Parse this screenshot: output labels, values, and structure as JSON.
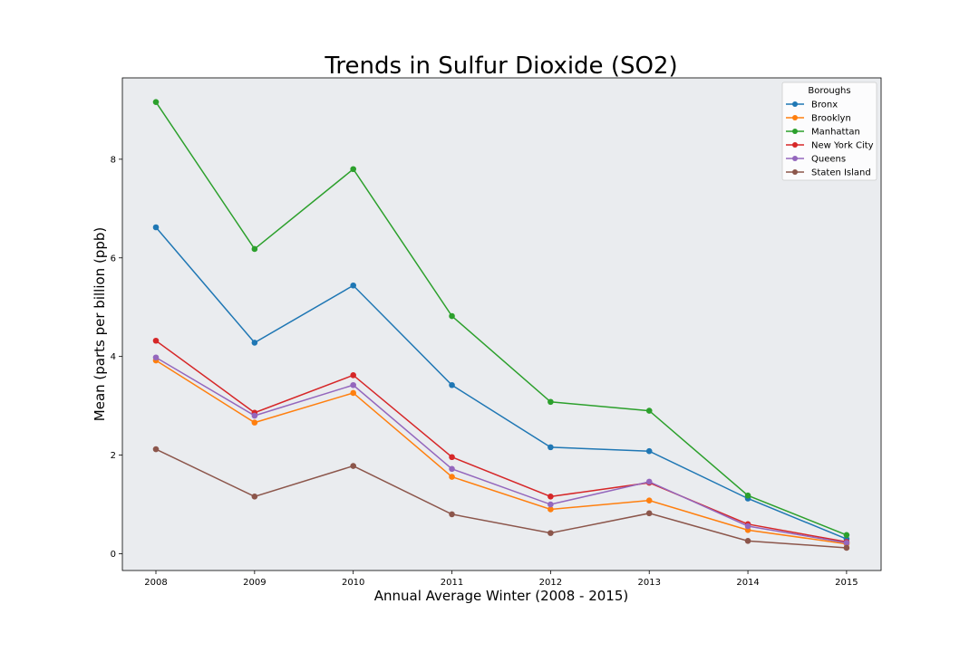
{
  "chart_data": {
    "type": "line",
    "title": "Trends in Sulfur Dioxide (SO2)",
    "xlabel": "Annual Average Winter (2008 - 2015)",
    "ylabel": "Mean (parts per billion (ppb)",
    "x": [
      "2008",
      "2009",
      "2010",
      "2011",
      "2012",
      "2013",
      "2014",
      "2015"
    ],
    "xlim": [
      2007.66,
      2015.35
    ],
    "ylim": [
      -0.34,
      9.65
    ],
    "yticks": [
      0,
      2,
      4,
      6,
      8
    ],
    "grid": false,
    "legend": {
      "title": "Boroughs",
      "placement": "top-right"
    },
    "background": "#eaecef",
    "series": [
      {
        "name": "Bronx",
        "color": "#1f77b4",
        "values": [
          6.62,
          4.28,
          5.44,
          3.42,
          2.16,
          2.08,
          1.12,
          0.3
        ]
      },
      {
        "name": "Brooklyn",
        "color": "#ff7f0e",
        "values": [
          3.92,
          2.66,
          3.26,
          1.56,
          0.9,
          1.08,
          0.48,
          0.2
        ]
      },
      {
        "name": "Manhattan",
        "color": "#2ca02c",
        "values": [
          9.16,
          6.18,
          7.8,
          4.82,
          3.08,
          2.9,
          1.18,
          0.38
        ]
      },
      {
        "name": "New York City",
        "color": "#d62728",
        "values": [
          4.32,
          2.86,
          3.62,
          1.96,
          1.16,
          1.44,
          0.6,
          0.24
        ]
      },
      {
        "name": "Queens",
        "color": "#9467bd",
        "values": [
          3.98,
          2.8,
          3.42,
          1.72,
          1.0,
          1.46,
          0.56,
          0.22
        ]
      },
      {
        "name": "Staten Island",
        "color": "#8c564b",
        "values": [
          2.12,
          1.16,
          1.78,
          0.8,
          0.42,
          0.82,
          0.26,
          0.12
        ]
      }
    ]
  }
}
